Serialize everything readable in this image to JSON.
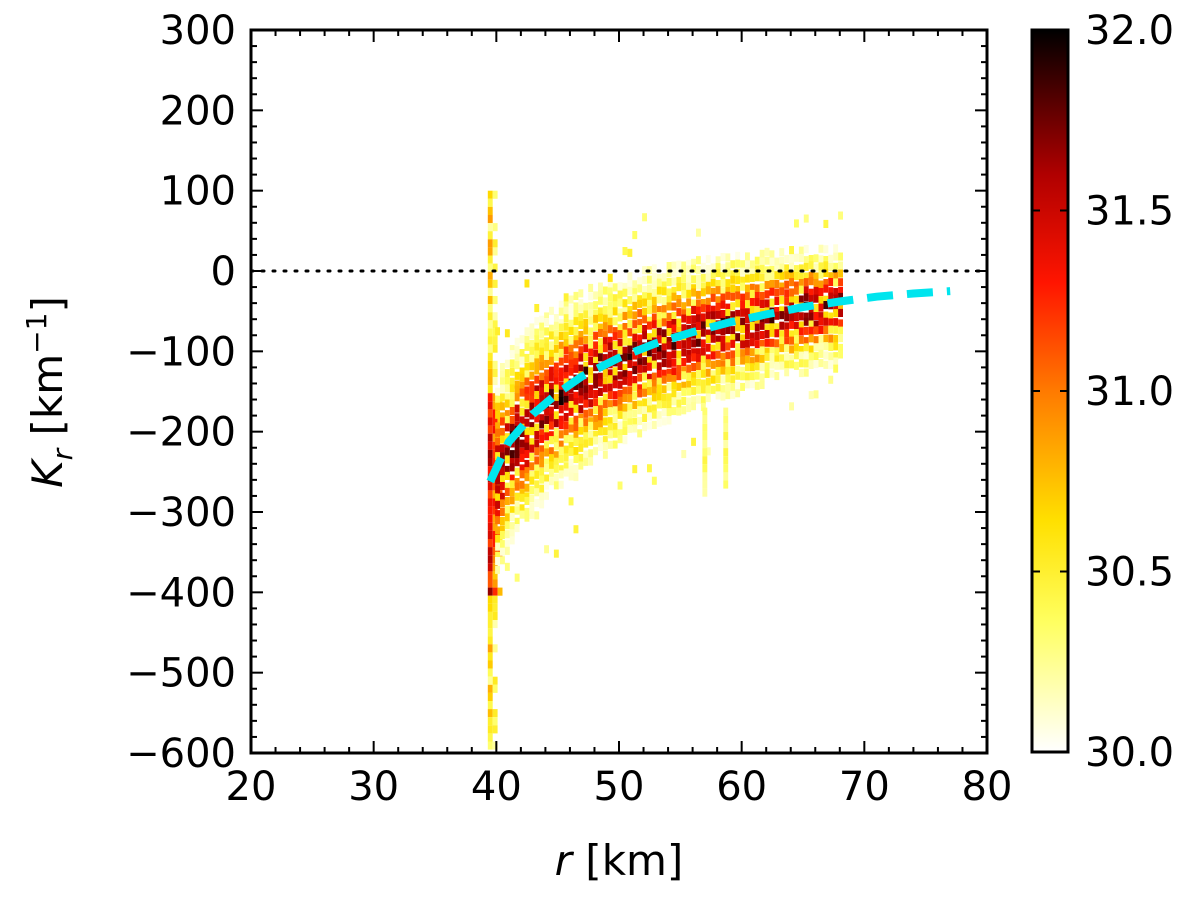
{
  "chart_data": {
    "type": "heatmap",
    "title": "",
    "xlabel": {
      "var": "r",
      "unit": " [km]"
    },
    "ylabel": {
      "var": "K",
      "sub": "r",
      "unit_pre": " [km",
      "sup": "−1",
      "unit_post": "]"
    },
    "xlim": [
      20,
      80
    ],
    "ylim": [
      -600,
      300
    ],
    "xticks": [
      20,
      30,
      40,
      50,
      60,
      70,
      80
    ],
    "xtick_labels": [
      "20",
      "30",
      "40",
      "50",
      "60",
      "70",
      "80"
    ],
    "yticks": [
      300,
      200,
      100,
      0,
      -100,
      -200,
      -300,
      -400,
      -500,
      -600
    ],
    "ytick_labels": [
      "300",
      "200",
      "100",
      "0",
      "−100",
      "−200",
      "−300",
      "−400",
      "−500",
      "−600"
    ],
    "colorbar": {
      "range": [
        30.0,
        32.0
      ],
      "ticks": [
        30.0,
        30.5,
        31.0,
        31.5,
        32.0
      ],
      "tick_labels": [
        "30.0",
        "30.5",
        "31.0",
        "31.5",
        "32.0"
      ],
      "colormap": "hot_r"
    },
    "reference_line": {
      "y": 0,
      "style": "dotted",
      "color": "#000000"
    },
    "fit_curve": {
      "style": "dashed",
      "color": "#00e5ee",
      "x": [
        39.5,
        41,
        43,
        45,
        47,
        50,
        53,
        56,
        59,
        62,
        65,
        68,
        71,
        74,
        77
      ],
      "y": [
        -262,
        -213,
        -178,
        -152,
        -131,
        -108,
        -90,
        -76,
        -64,
        -54,
        -45,
        -38,
        -32,
        -28,
        -25
      ]
    },
    "density": {
      "description": "2D histogram of K_r vs r; band following the fit curve plus a vertical streak near r≈39.5 km",
      "vertical_streak": {
        "x": 39.5,
        "y_range": [
          -590,
          100
        ],
        "core_range": [
          -400,
          -150
        ]
      },
      "band_x_range": [
        39.5,
        68
      ],
      "secondary_streaks": [
        {
          "x": 56.8,
          "y_range": [
            -280,
            -170
          ]
        },
        {
          "x": 58.5,
          "y_range": [
            -265,
            -170
          ]
        }
      ]
    }
  }
}
